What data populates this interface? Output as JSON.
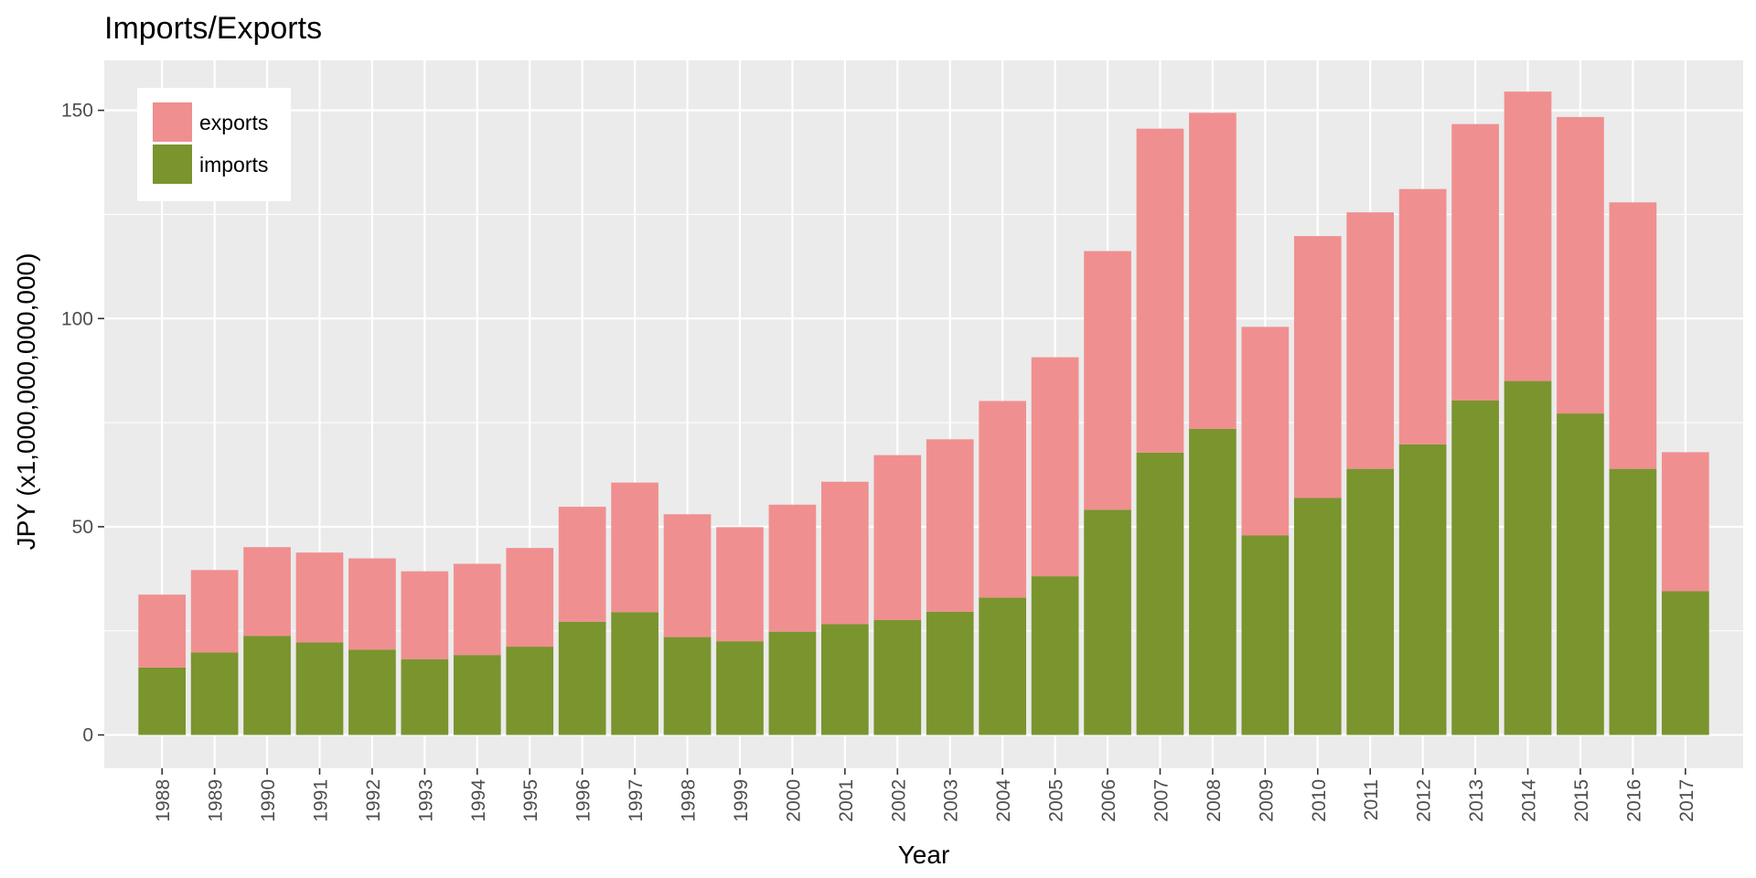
{
  "chart_data": {
    "type": "bar",
    "stacked": true,
    "title": "Imports/Exports",
    "xlabel": "Year",
    "ylabel": "JPY (x1,000,000,000,000)",
    "ylim": [
      -8,
      162
    ],
    "yticks": [
      0,
      50,
      100,
      150
    ],
    "categories": [
      "1988",
      "1989",
      "1990",
      "1991",
      "1992",
      "1993",
      "1994",
      "1995",
      "1996",
      "1997",
      "1998",
      "1999",
      "2000",
      "2001",
      "2002",
      "2003",
      "2004",
      "2005",
      "2006",
      "2007",
      "2008",
      "2009",
      "2010",
      "2011",
      "2012",
      "2013",
      "2014",
      "2015",
      "2016",
      "2017"
    ],
    "series": [
      {
        "name": "imports",
        "color": "#7a942e",
        "values": [
          16.2,
          19.8,
          23.8,
          22.2,
          20.5,
          18.2,
          19.2,
          21.2,
          27.2,
          29.5,
          23.5,
          22.5,
          24.8,
          26.6,
          27.6,
          29.6,
          33.0,
          38.1,
          54.1,
          67.8,
          73.5,
          47.9,
          56.9,
          63.9,
          69.8,
          80.3,
          85.0,
          77.2,
          63.9,
          34.5
        ]
      },
      {
        "name": "exports",
        "color": "#f08f90",
        "values": [
          17.5,
          19.8,
          21.3,
          21.6,
          21.9,
          21.1,
          21.9,
          23.7,
          27.6,
          31.1,
          29.5,
          27.4,
          30.5,
          34.2,
          39.6,
          41.4,
          47.2,
          52.6,
          62.1,
          77.8,
          75.9,
          50.1,
          62.9,
          61.6,
          61.3,
          66.4,
          69.5,
          71.2,
          64.0,
          33.4
        ]
      }
    ],
    "legend": {
      "position": "top-left",
      "order": [
        "exports",
        "imports"
      ]
    },
    "grid": true
  }
}
